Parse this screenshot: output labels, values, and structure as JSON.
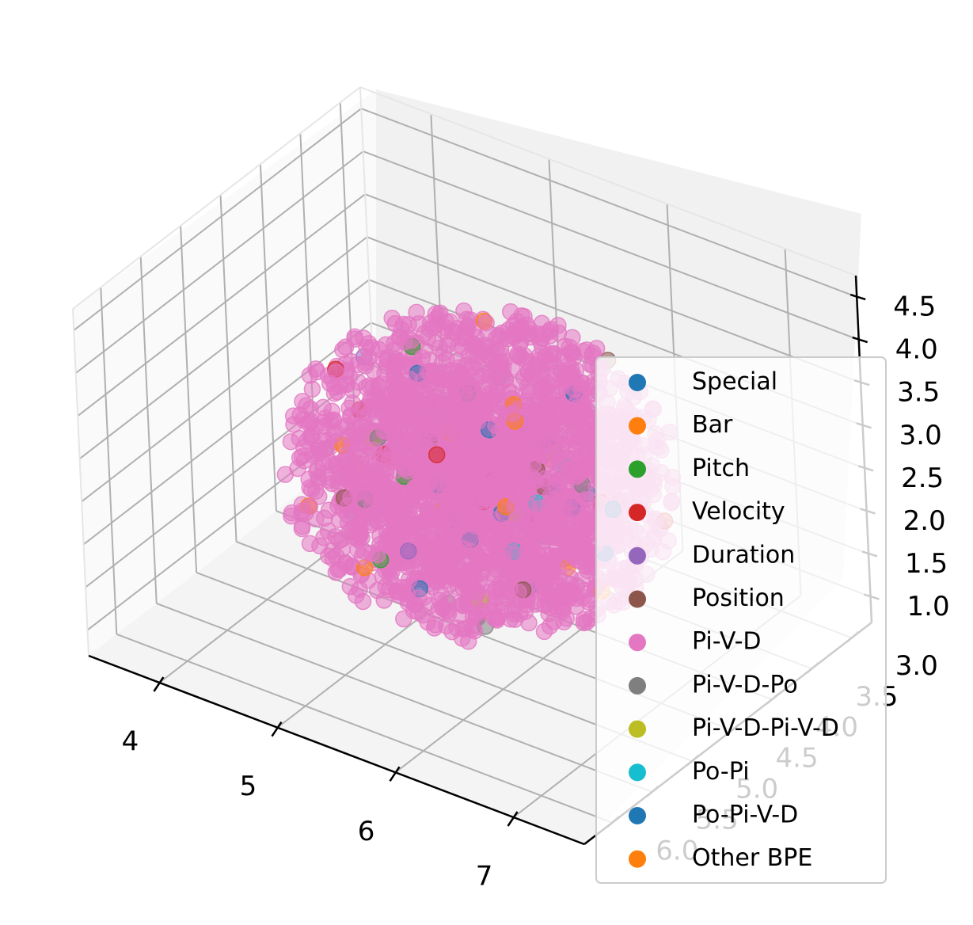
{
  "chart_data": {
    "type": "scatter",
    "projection": "3d",
    "title": "",
    "xlabel": "",
    "ylabel": "",
    "zlabel": "",
    "grid": true,
    "legend_placement": "lower-right",
    "x_ticks": [
      "4",
      "5",
      "6",
      "7"
    ],
    "y_ticks": [
      "3.0",
      "3.5",
      "4.0",
      "4.5",
      "5.0",
      "5.5",
      "6.0"
    ],
    "z_ticks": [
      "1.0",
      "1.5",
      "2.0",
      "2.5",
      "3.0",
      "3.5",
      "4.0",
      "4.5"
    ],
    "xlim": [
      3.4,
      7.6
    ],
    "ylim": [
      2.75,
      6.35
    ],
    "zlim": [
      0.7,
      4.75
    ],
    "series": [
      {
        "name": "Special",
        "color": "#1f77b4"
      },
      {
        "name": "Bar",
        "color": "#ff7f0e"
      },
      {
        "name": "Pitch",
        "color": "#2ca02c"
      },
      {
        "name": "Velocity",
        "color": "#d62728"
      },
      {
        "name": "Duration",
        "color": "#9467bd"
      },
      {
        "name": "Position",
        "color": "#8c564b"
      },
      {
        "name": "Pi-V-D",
        "color": "#e377c2"
      },
      {
        "name": "Pi-V-D-Po",
        "color": "#7f7f7f"
      },
      {
        "name": "Pi-V-D-Pi-V-D",
        "color": "#bcbd22"
      },
      {
        "name": "Po-Pi",
        "color": "#17becf"
      },
      {
        "name": "Po-Pi-V-D",
        "color": "#1f77b4"
      },
      {
        "name": "Other BPE",
        "color": "#ff7f0e"
      }
    ],
    "cluster": {
      "x_center": 5.6,
      "y_center": 4.6,
      "z_center": 2.7,
      "dominant_series": "Pi-V-D",
      "alpha": 0.55
    }
  }
}
